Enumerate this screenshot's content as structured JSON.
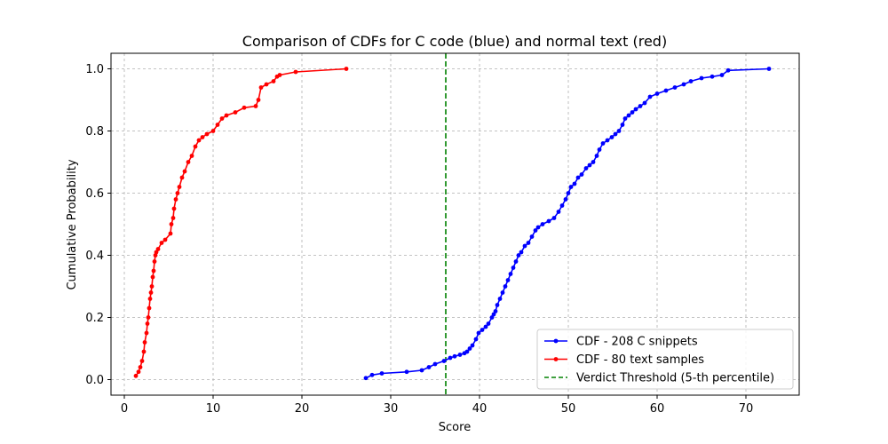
{
  "chart_data": {
    "type": "line",
    "title": "Comparison of CDFs for C code (blue) and normal text (red)",
    "xlabel": "Score",
    "ylabel": "Cumulative Probability",
    "xlim": [
      -1.5,
      76
    ],
    "ylim": [
      -0.05,
      1.05
    ],
    "xticks": [
      0,
      10,
      20,
      30,
      40,
      50,
      60,
      70
    ],
    "yticks": [
      0.0,
      0.2,
      0.4,
      0.6,
      0.8,
      1.0
    ],
    "grid": true,
    "legend_position": "lower-right",
    "series": [
      {
        "name": "CDF - 208 C snippets",
        "color": "#0000ff",
        "x": [
          27.2,
          27.9,
          29.0,
          31.8,
          33.5,
          34.3,
          35.0,
          36.0,
          36.7,
          37.2,
          37.8,
          38.3,
          38.6,
          38.9,
          39.2,
          39.6,
          39.9,
          40.3,
          40.7,
          41.0,
          41.4,
          41.6,
          41.8,
          42.0,
          42.3,
          42.6,
          42.9,
          43.2,
          43.5,
          43.8,
          44.1,
          44.4,
          44.7,
          45.1,
          45.5,
          45.9,
          46.3,
          46.6,
          47.1,
          47.8,
          48.4,
          48.9,
          49.3,
          49.7,
          50.0,
          50.3,
          50.7,
          51.1,
          51.5,
          52.0,
          52.4,
          52.8,
          53.2,
          53.5,
          53.9,
          54.4,
          54.9,
          55.3,
          55.7,
          56.1,
          56.4,
          56.8,
          57.2,
          57.6,
          58.1,
          58.6,
          59.2,
          60.0,
          61.0,
          62.0,
          63.0,
          63.8,
          65.0,
          66.2,
          67.3,
          68.0,
          72.6
        ],
        "y": [
          0.005,
          0.015,
          0.02,
          0.025,
          0.03,
          0.04,
          0.05,
          0.06,
          0.07,
          0.075,
          0.08,
          0.085,
          0.09,
          0.1,
          0.11,
          0.13,
          0.15,
          0.16,
          0.17,
          0.18,
          0.2,
          0.21,
          0.22,
          0.24,
          0.26,
          0.28,
          0.3,
          0.32,
          0.34,
          0.36,
          0.38,
          0.4,
          0.41,
          0.43,
          0.44,
          0.46,
          0.48,
          0.49,
          0.5,
          0.51,
          0.52,
          0.54,
          0.56,
          0.58,
          0.6,
          0.62,
          0.63,
          0.65,
          0.66,
          0.68,
          0.69,
          0.7,
          0.72,
          0.74,
          0.76,
          0.77,
          0.78,
          0.79,
          0.8,
          0.82,
          0.84,
          0.85,
          0.86,
          0.87,
          0.88,
          0.89,
          0.91,
          0.92,
          0.93,
          0.94,
          0.95,
          0.96,
          0.97,
          0.975,
          0.98,
          0.995,
          1.0
        ]
      },
      {
        "name": "CDF - 80 text samples",
        "color": "#ff0000",
        "x": [
          1.3,
          1.6,
          1.8,
          2.0,
          2.2,
          2.3,
          2.5,
          2.6,
          2.7,
          2.8,
          2.9,
          3.0,
          3.1,
          3.2,
          3.3,
          3.4,
          3.5,
          3.6,
          3.8,
          4.2,
          4.6,
          5.2,
          5.3,
          5.5,
          5.6,
          5.8,
          6.0,
          6.2,
          6.5,
          6.8,
          7.2,
          7.6,
          8.0,
          8.4,
          8.8,
          9.3,
          10.0,
          10.5,
          11.0,
          11.5,
          12.5,
          13.5,
          14.8,
          15.1,
          15.4,
          16.0,
          16.8,
          17.2,
          17.5,
          19.3,
          25.0
        ],
        "y": [
          0.012,
          0.025,
          0.04,
          0.06,
          0.09,
          0.12,
          0.15,
          0.18,
          0.2,
          0.23,
          0.26,
          0.28,
          0.3,
          0.33,
          0.35,
          0.38,
          0.4,
          0.41,
          0.42,
          0.44,
          0.45,
          0.47,
          0.5,
          0.52,
          0.55,
          0.58,
          0.6,
          0.62,
          0.65,
          0.67,
          0.7,
          0.72,
          0.75,
          0.77,
          0.78,
          0.79,
          0.8,
          0.82,
          0.84,
          0.85,
          0.86,
          0.875,
          0.88,
          0.9,
          0.94,
          0.95,
          0.96,
          0.975,
          0.98,
          0.99,
          1.0
        ]
      }
    ],
    "reference_lines": [
      {
        "name": "Verdict Threshold (5-th percentile)",
        "orientation": "vertical",
        "x": 36.2,
        "color": "#008000",
        "style": "dashed"
      }
    ]
  }
}
